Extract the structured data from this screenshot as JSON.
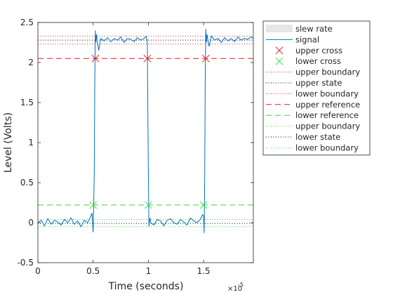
{
  "chart_data": {
    "type": "line",
    "xlabel": "Time (seconds)",
    "ylabel": "Level (Volts)",
    "x_exponent_base": "×10",
    "x_exponent_power": "-5",
    "xlim": [
      0,
      1.95
    ],
    "ylim": [
      -0.5,
      2.5
    ],
    "x_ticks": [
      0,
      0.5,
      1,
      1.5
    ],
    "x_tick_labels": [
      "0",
      "0.5",
      "1",
      "1.5"
    ],
    "y_ticks": [
      -0.5,
      0,
      0.5,
      1,
      1.5,
      2,
      2.5
    ],
    "y_tick_labels": [
      "-0.5",
      "0",
      "0.5",
      "1",
      "1.5",
      "2",
      "2.5"
    ],
    "grid": false,
    "legend_placement": "outside-right",
    "legend": [
      {
        "label": "slew rate",
        "kind": "patch",
        "color": "#e6e6e6"
      },
      {
        "label": "signal",
        "kind": "line",
        "color": "#0072bd",
        "dash": ""
      },
      {
        "label": "upper cross",
        "kind": "marker",
        "color": "#e31a1c",
        "marker": "x"
      },
      {
        "label": "lower cross",
        "kind": "marker",
        "color": "#33dd33",
        "marker": "x"
      },
      {
        "label": "upper boundary",
        "kind": "line",
        "color": "#e31a1c",
        "dash": "1,2.5"
      },
      {
        "label": "upper state",
        "kind": "line",
        "color": "#000000",
        "dash": "1,2.5"
      },
      {
        "label": "lower boundary",
        "kind": "line",
        "color": "#e31a1c",
        "dash": "1,2.5"
      },
      {
        "label": "upper reference",
        "kind": "line",
        "color": "#e31a1c",
        "dash": "8,5"
      },
      {
        "label": "lower reference",
        "kind": "line",
        "color": "#33dd33",
        "dash": "8,5"
      },
      {
        "label": "upper boundary",
        "kind": "line",
        "color": "#33dd33",
        "dash": "1,2.5"
      },
      {
        "label": "lower state",
        "kind": "line",
        "color": "#000000",
        "dash": "1,2.5"
      },
      {
        "label": "lower boundary",
        "kind": "line",
        "color": "#33dd33",
        "dash": "1,2.5"
      }
    ],
    "series": [
      {
        "name": "signal",
        "color": "#0072bd",
        "x": [
          0,
          0.03,
          0.06,
          0.09,
          0.12,
          0.15,
          0.18,
          0.21,
          0.24,
          0.27,
          0.3,
          0.33,
          0.36,
          0.39,
          0.42,
          0.45,
          0.47,
          0.49,
          0.5,
          0.51,
          0.515,
          0.52,
          0.525,
          0.53,
          0.55,
          0.57,
          0.6,
          0.63,
          0.66,
          0.69,
          0.72,
          0.75,
          0.78,
          0.81,
          0.84,
          0.87,
          0.9,
          0.93,
          0.96,
          0.98,
          0.99,
          1.0,
          1.005,
          1.01,
          1.015,
          1.02,
          1.05,
          1.08,
          1.11,
          1.14,
          1.17,
          1.2,
          1.23,
          1.26,
          1.29,
          1.32,
          1.35,
          1.38,
          1.41,
          1.44,
          1.47,
          1.49,
          1.5,
          1.505,
          1.51,
          1.515,
          1.52,
          1.525,
          1.53,
          1.55,
          1.57,
          1.6,
          1.63,
          1.66,
          1.69,
          1.72,
          1.75,
          1.78,
          1.81,
          1.84,
          1.87,
          1.9,
          1.93,
          1.95
        ],
        "y": [
          0.0,
          0.03,
          -0.04,
          0.05,
          -0.02,
          0.03,
          0.01,
          -0.03,
          0.04,
          0.0,
          0.06,
          -0.02,
          0.02,
          -0.05,
          0.03,
          0.0,
          0.05,
          0.12,
          -0.12,
          0.6,
          1.8,
          2.4,
          2.25,
          2.35,
          2.15,
          2.3,
          2.27,
          2.31,
          2.26,
          2.3,
          2.28,
          2.32,
          2.25,
          2.3,
          2.29,
          2.26,
          2.31,
          2.28,
          2.3,
          2.33,
          2.27,
          0.6,
          -0.05,
          0.02,
          0.06,
          0.0,
          -0.03,
          0.04,
          0.02,
          -0.04,
          0.03,
          0.05,
          0.0,
          -0.02,
          0.04,
          0.01,
          -0.03,
          0.06,
          0.02,
          0.0,
          0.04,
          0.1,
          0.08,
          -0.13,
          0.6,
          1.9,
          2.42,
          2.25,
          2.35,
          2.2,
          2.33,
          2.28,
          2.3,
          2.25,
          2.31,
          2.27,
          2.3,
          2.26,
          2.32,
          2.28,
          2.3,
          2.29,
          2.32,
          2.3
        ]
      }
    ],
    "hlines": [
      {
        "name": "upper-boundary-high",
        "y": 2.33,
        "color": "#e31a1c",
        "dash": "1,2.5"
      },
      {
        "name": "upper-state",
        "y": 2.28,
        "color": "#000000",
        "dash": "1,2.5"
      },
      {
        "name": "upper-boundary-low",
        "y": 2.23,
        "color": "#e31a1c",
        "dash": "1,2.5"
      },
      {
        "name": "upper-reference",
        "y": 2.05,
        "color": "#e31a1c",
        "dash": "8,5"
      },
      {
        "name": "lower-reference",
        "y": 0.22,
        "color": "#33dd33",
        "dash": "8,5"
      },
      {
        "name": "lower-boundary-high",
        "y": 0.04,
        "color": "#33dd33",
        "dash": "1,2.5"
      },
      {
        "name": "lower-state",
        "y": -0.01,
        "color": "#000000",
        "dash": "1,2.5"
      },
      {
        "name": "lower-boundary-low",
        "y": -0.05,
        "color": "#33dd33",
        "dash": "1,2.5"
      }
    ],
    "upper_crosses": {
      "x": [
        0.52,
        0.99,
        1.52
      ],
      "y": [
        2.05,
        2.05,
        2.05
      ],
      "color": "#e31a1c"
    },
    "lower_crosses": {
      "x": [
        0.5,
        1.0,
        1.5
      ],
      "y": [
        0.22,
        0.22,
        0.22
      ],
      "color": "#33dd33"
    }
  }
}
